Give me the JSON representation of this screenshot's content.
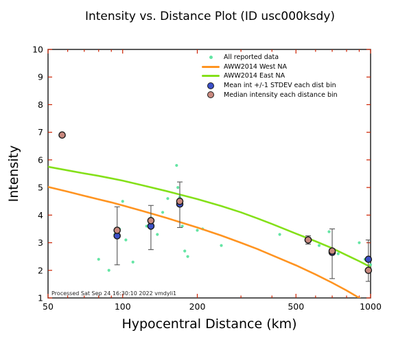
{
  "chart_data": {
    "type": "scatter",
    "title": "Intensity vs. Distance Plot (ID usc000ksdy)",
    "xlabel": "Hypocentral Distance (km)",
    "ylabel": "Intensity",
    "footer": "Processed Sat Sep 24 16:30:10 2022 vmdyli1",
    "xscale": "log",
    "xlim": [
      50,
      1000
    ],
    "ylim": [
      1,
      10
    ],
    "xticks": [
      50,
      100,
      200,
      500,
      1000
    ],
    "xminor": [
      60,
      70,
      80,
      90,
      300,
      400,
      600,
      700,
      800,
      900
    ],
    "yticks": [
      1,
      2,
      3,
      4,
      5,
      6,
      7,
      8,
      9,
      10
    ],
    "grid": false,
    "legend_position": "inside-upper-right",
    "colors": {
      "background": "#ffffff",
      "axis": "#000000",
      "tick": "#cc2200",
      "errorbar": "#555555",
      "scatter": "#64e5a4",
      "west_line": "#ff9421",
      "east_line": "#84e019",
      "mean_fill": "#3c50c8",
      "median_fill": "#c9897f",
      "marker_edge": "#1a1a1a"
    },
    "series": [
      {
        "name": "All reported data",
        "type": "scatter",
        "color": "#64e5a4",
        "points": [
          [
            57,
            6.9
          ],
          [
            80,
            2.4
          ],
          [
            88,
            2.0
          ],
          [
            93,
            3.3
          ],
          [
            97,
            3.5
          ],
          [
            100,
            4.5
          ],
          [
            103,
            3.1
          ],
          [
            110,
            2.3
          ],
          [
            125,
            3.6
          ],
          [
            130,
            3.9
          ],
          [
            138,
            3.3
          ],
          [
            145,
            4.1
          ],
          [
            152,
            4.6
          ],
          [
            165,
            5.8
          ],
          [
            167,
            5.0
          ],
          [
            170,
            4.65
          ],
          [
            172,
            4.4
          ],
          [
            174,
            3.6
          ],
          [
            178,
            2.7
          ],
          [
            183,
            2.5
          ],
          [
            200,
            3.45
          ],
          [
            210,
            3.5
          ],
          [
            250,
            2.9
          ],
          [
            430,
            3.3
          ],
          [
            560,
            3.1
          ],
          [
            620,
            2.9
          ],
          [
            680,
            3.4
          ],
          [
            710,
            2.7
          ],
          [
            740,
            2.6
          ],
          [
            900,
            3.0
          ],
          [
            950,
            2.4
          ],
          [
            975,
            2.0
          ],
          [
            1000,
            2.2
          ]
        ]
      },
      {
        "name": "AWW2014 West NA",
        "type": "line",
        "color": "#ff9421",
        "points": [
          [
            50,
            5.02
          ],
          [
            60,
            4.85
          ],
          [
            70,
            4.7
          ],
          [
            80,
            4.57
          ],
          [
            90,
            4.46
          ],
          [
            100,
            4.35
          ],
          [
            120,
            4.15
          ],
          [
            150,
            3.9
          ],
          [
            200,
            3.55
          ],
          [
            250,
            3.26
          ],
          [
            300,
            3.0
          ],
          [
            350,
            2.77
          ],
          [
            400,
            2.55
          ],
          [
            500,
            2.18
          ],
          [
            600,
            1.85
          ],
          [
            700,
            1.55
          ],
          [
            800,
            1.27
          ],
          [
            900,
            1.0
          ],
          [
            1000,
            0.75
          ]
        ]
      },
      {
        "name": "AWW2014 East NA",
        "type": "line",
        "color": "#84e019",
        "points": [
          [
            50,
            5.75
          ],
          [
            60,
            5.62
          ],
          [
            70,
            5.51
          ],
          [
            80,
            5.42
          ],
          [
            90,
            5.33
          ],
          [
            100,
            5.25
          ],
          [
            120,
            5.08
          ],
          [
            150,
            4.87
          ],
          [
            200,
            4.58
          ],
          [
            250,
            4.33
          ],
          [
            300,
            4.1
          ],
          [
            350,
            3.88
          ],
          [
            400,
            3.68
          ],
          [
            500,
            3.33
          ],
          [
            600,
            3.05
          ],
          [
            700,
            2.8
          ],
          [
            800,
            2.55
          ],
          [
            900,
            2.33
          ],
          [
            1000,
            2.12
          ]
        ]
      },
      {
        "name": "Mean int +/-1 STDEV each dist bin",
        "type": "errorbar-marker",
        "fill": "#3c50c8",
        "edge": "#1a1a1a",
        "points": [
          {
            "x": 95,
            "y": 3.25,
            "lo": 2.2,
            "hi": 4.3
          },
          {
            "x": 130,
            "y": 3.6,
            "lo": 2.75,
            "hi": 4.35
          },
          {
            "x": 170,
            "y": 4.4,
            "lo": 3.55,
            "hi": 5.2
          },
          {
            "x": 560,
            "y": 3.1,
            "lo": 2.95,
            "hi": 3.25
          },
          {
            "x": 700,
            "y": 2.65,
            "lo": 1.7,
            "hi": 3.5
          },
          {
            "x": 980,
            "y": 2.4,
            "lo": 1.6,
            "hi": 3.1
          }
        ]
      },
      {
        "name": "Median intensity each distance bin",
        "type": "marker",
        "fill": "#c9897f",
        "edge": "#1a1a1a",
        "points": [
          [
            57,
            6.9
          ],
          [
            95,
            3.45
          ],
          [
            130,
            3.8
          ],
          [
            170,
            4.5
          ],
          [
            560,
            3.1
          ],
          [
            700,
            2.7
          ],
          [
            980,
            2.0
          ]
        ]
      }
    ]
  }
}
